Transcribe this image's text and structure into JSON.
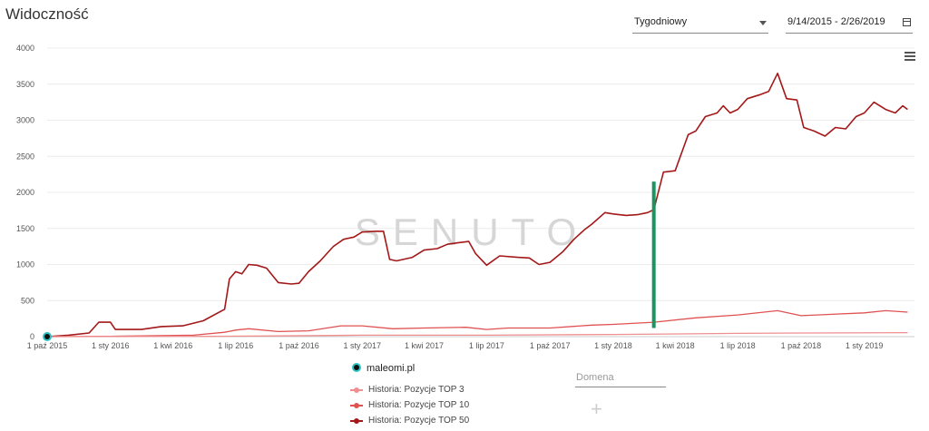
{
  "header": {
    "title": "Widoczność",
    "period_select": "Tygodniowy",
    "date_range": "9/14/2015 - 2/26/2019"
  },
  "watermark": "SENUTO",
  "legend": {
    "domain": "maleomi.pl",
    "series": [
      "Historia: Pozycje TOP 3",
      "Historia: Pozycje TOP 10",
      "Historia: Pozycje TOP 50"
    ]
  },
  "domain_input": {
    "placeholder": "Domena"
  },
  "colors": {
    "top3": "#ef8f8f",
    "top10": "#e05252",
    "top50": "#a31818",
    "marker": "#1a9461",
    "domain_dot": "#2cc3c1"
  },
  "chart_data": {
    "type": "line",
    "title": "Widoczność",
    "ylim": [
      0,
      4000
    ],
    "yticks": [
      0,
      500,
      1000,
      1500,
      2000,
      2500,
      3000,
      3500,
      4000
    ],
    "x_range": [
      "2015-10-01",
      "2019-03-15"
    ],
    "xticks": [
      {
        "date": "2015-10-01",
        "label": "1 paź 2015"
      },
      {
        "date": "2016-01-01",
        "label": "1 sty 2016"
      },
      {
        "date": "2016-04-01",
        "label": "1 kwi 2016"
      },
      {
        "date": "2016-07-01",
        "label": "1 lip 2016"
      },
      {
        "date": "2016-10-01",
        "label": "1 paź 2016"
      },
      {
        "date": "2017-01-01",
        "label": "1 sty 2017"
      },
      {
        "date": "2017-04-01",
        "label": "1 kwi 2017"
      },
      {
        "date": "2017-07-01",
        "label": "1 lip 2017"
      },
      {
        "date": "2017-10-01",
        "label": "1 paź 2017"
      },
      {
        "date": "2018-01-01",
        "label": "1 sty 2018"
      },
      {
        "date": "2018-04-01",
        "label": "1 kwi 2018"
      },
      {
        "date": "2018-07-01",
        "label": "1 lip 2018"
      },
      {
        "date": "2018-10-01",
        "label": "1 paź 2018"
      },
      {
        "date": "2019-01-01",
        "label": "1 sty 2019"
      }
    ],
    "grid": true,
    "marker_line": {
      "date": "2018-03-01",
      "from": 120,
      "to": 2150
    },
    "series": [
      {
        "name": "Historia: Pozycje TOP 50",
        "points": [
          [
            "2015-10-01",
            0
          ],
          [
            "2015-11-01",
            20
          ],
          [
            "2015-12-01",
            50
          ],
          [
            "2015-12-15",
            200
          ],
          [
            "2016-01-01",
            200
          ],
          [
            "2016-01-08",
            100
          ],
          [
            "2016-02-15",
            100
          ],
          [
            "2016-03-15",
            140
          ],
          [
            "2016-04-15",
            150
          ],
          [
            "2016-05-15",
            220
          ],
          [
            "2016-06-15",
            380
          ],
          [
            "2016-06-22",
            800
          ],
          [
            "2016-07-01",
            900
          ],
          [
            "2016-07-10",
            870
          ],
          [
            "2016-07-20",
            1000
          ],
          [
            "2016-08-01",
            990
          ],
          [
            "2016-08-15",
            950
          ],
          [
            "2016-09-01",
            750
          ],
          [
            "2016-09-20",
            730
          ],
          [
            "2016-10-01",
            740
          ],
          [
            "2016-10-15",
            900
          ],
          [
            "2016-11-01",
            1050
          ],
          [
            "2016-11-20",
            1250
          ],
          [
            "2016-12-05",
            1350
          ],
          [
            "2016-12-20",
            1380
          ],
          [
            "2017-01-01",
            1450
          ],
          [
            "2017-01-20",
            1460
          ],
          [
            "2017-02-01",
            1460
          ],
          [
            "2017-02-10",
            1070
          ],
          [
            "2017-02-20",
            1050
          ],
          [
            "2017-03-15",
            1100
          ],
          [
            "2017-04-01",
            1200
          ],
          [
            "2017-04-20",
            1220
          ],
          [
            "2017-05-05",
            1280
          ],
          [
            "2017-05-20",
            1300
          ],
          [
            "2017-06-05",
            1320
          ],
          [
            "2017-06-15",
            1150
          ],
          [
            "2017-07-01",
            990
          ],
          [
            "2017-07-20",
            1120
          ],
          [
            "2017-08-15",
            1100
          ],
          [
            "2017-09-01",
            1090
          ],
          [
            "2017-09-15",
            1000
          ],
          [
            "2017-10-01",
            1030
          ],
          [
            "2017-10-20",
            1180
          ],
          [
            "2017-11-05",
            1350
          ],
          [
            "2017-11-20",
            1480
          ],
          [
            "2017-12-01",
            1560
          ],
          [
            "2017-12-20",
            1720
          ],
          [
            "2018-01-01",
            1700
          ],
          [
            "2018-01-20",
            1680
          ],
          [
            "2018-02-05",
            1690
          ],
          [
            "2018-02-20",
            1720
          ],
          [
            "2018-03-01",
            1760
          ],
          [
            "2018-03-15",
            2280
          ],
          [
            "2018-04-01",
            2300
          ],
          [
            "2018-04-20",
            2800
          ],
          [
            "2018-05-01",
            2850
          ],
          [
            "2018-05-15",
            3050
          ],
          [
            "2018-06-01",
            3100
          ],
          [
            "2018-06-10",
            3200
          ],
          [
            "2018-06-20",
            3100
          ],
          [
            "2018-07-01",
            3150
          ],
          [
            "2018-07-15",
            3300
          ],
          [
            "2018-08-01",
            3350
          ],
          [
            "2018-08-15",
            3400
          ],
          [
            "2018-08-28",
            3650
          ],
          [
            "2018-09-10",
            3300
          ],
          [
            "2018-09-25",
            3280
          ],
          [
            "2018-10-05",
            2900
          ],
          [
            "2018-10-20",
            2850
          ],
          [
            "2018-11-05",
            2780
          ],
          [
            "2018-11-20",
            2900
          ],
          [
            "2018-12-05",
            2880
          ],
          [
            "2018-12-20",
            3050
          ],
          [
            "2019-01-01",
            3100
          ],
          [
            "2019-01-15",
            3250
          ],
          [
            "2019-02-01",
            3150
          ],
          [
            "2019-02-15",
            3100
          ],
          [
            "2019-02-26",
            3200
          ],
          [
            "2019-03-05",
            3150
          ]
        ]
      },
      {
        "name": "Historia: Pozycje TOP 10",
        "points": [
          [
            "2015-10-01",
            0
          ],
          [
            "2016-01-01",
            5
          ],
          [
            "2016-05-01",
            20
          ],
          [
            "2016-06-15",
            60
          ],
          [
            "2016-07-01",
            90
          ],
          [
            "2016-07-20",
            110
          ],
          [
            "2016-09-01",
            70
          ],
          [
            "2016-10-15",
            80
          ],
          [
            "2016-12-01",
            150
          ],
          [
            "2017-01-01",
            150
          ],
          [
            "2017-02-15",
            110
          ],
          [
            "2017-04-01",
            120
          ],
          [
            "2017-06-01",
            130
          ],
          [
            "2017-07-01",
            100
          ],
          [
            "2017-08-01",
            120
          ],
          [
            "2017-10-01",
            120
          ],
          [
            "2017-12-01",
            160
          ],
          [
            "2018-01-01",
            170
          ],
          [
            "2018-03-01",
            200
          ],
          [
            "2018-05-01",
            260
          ],
          [
            "2018-07-01",
            300
          ],
          [
            "2018-08-28",
            360
          ],
          [
            "2018-10-01",
            290
          ],
          [
            "2018-11-15",
            310
          ],
          [
            "2019-01-01",
            330
          ],
          [
            "2019-02-01",
            360
          ],
          [
            "2019-03-05",
            340
          ]
        ]
      },
      {
        "name": "Historia: Pozycje TOP 3",
        "points": [
          [
            "2015-10-01",
            0
          ],
          [
            "2016-06-01",
            5
          ],
          [
            "2016-09-01",
            10
          ],
          [
            "2017-01-01",
            20
          ],
          [
            "2017-07-01",
            20
          ],
          [
            "2018-01-01",
            30
          ],
          [
            "2018-07-01",
            45
          ],
          [
            "2018-10-01",
            50
          ],
          [
            "2019-03-05",
            55
          ]
        ]
      }
    ]
  }
}
